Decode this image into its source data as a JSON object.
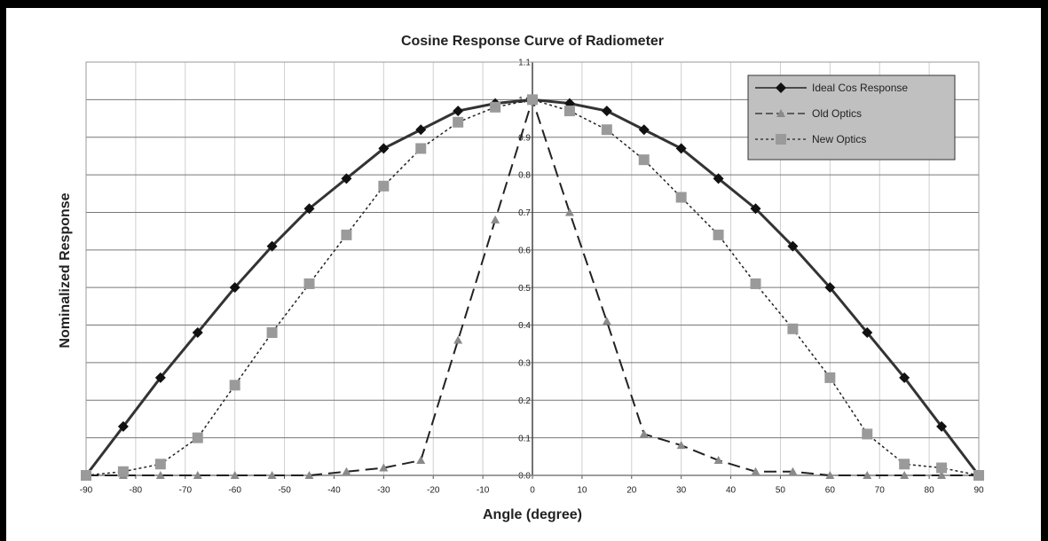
{
  "chart_data": {
    "type": "line",
    "title": "Cosine Response Curve of Radiometer",
    "x_label": "Angle (degree)",
    "y_label": "Nominalized Response",
    "x": [
      -90,
      -82.5,
      -75,
      -67.5,
      -60,
      -52.5,
      -45,
      -37.5,
      -30,
      -22.5,
      -15,
      -7.5,
      0,
      7.5,
      15,
      22.5,
      30,
      37.5,
      45,
      52.5,
      60,
      67.5,
      75,
      82.5,
      90
    ],
    "series": [
      {
        "name": "Ideal Cos Response",
        "color": "#2b2b2b",
        "dash": "solid",
        "marker": "diamond",
        "values": [
          0,
          0.13,
          0.26,
          0.38,
          0.5,
          0.61,
          0.71,
          0.79,
          0.87,
          0.92,
          0.97,
          0.99,
          1,
          0.99,
          0.97,
          0.92,
          0.87,
          0.79,
          0.71,
          0.61,
          0.5,
          0.38,
          0.26,
          0.13,
          0
        ]
      },
      {
        "name": "Old Optics",
        "color": "#8a8a8a",
        "dash": "dashed",
        "marker": "triangle",
        "values": [
          0,
          0,
          0,
          0,
          0,
          0,
          0,
          0.01,
          0.02,
          0.04,
          0.36,
          0.68,
          1,
          0.7,
          0.41,
          0.11,
          0.08,
          0.04,
          0.01,
          0.01,
          0,
          0,
          0,
          0,
          0
        ]
      },
      {
        "name": "New Optics",
        "color": "#9a9a9a",
        "dash": "dotted",
        "marker": "square",
        "values": [
          0,
          0.01,
          0.03,
          0.1,
          0.24,
          0.38,
          0.51,
          0.64,
          0.77,
          0.87,
          0.94,
          0.98,
          1,
          0.97,
          0.92,
          0.84,
          0.74,
          0.64,
          0.51,
          0.39,
          0.26,
          0.11,
          0.03,
          0.02,
          0
        ]
      }
    ],
    "xlim": [
      -90,
      90
    ],
    "xticks": [
      -90,
      -80,
      -70,
      -60,
      -50,
      -40,
      -30,
      -20,
      -10,
      0,
      10,
      20,
      30,
      40,
      50,
      60,
      70,
      80,
      90
    ],
    "ylim": [
      0,
      1.1
    ],
    "yticks": [
      {
        "value": 0,
        "label": "0.0"
      },
      0.1,
      0.2,
      0.3,
      0.4,
      0.5,
      0.6,
      0.7,
      0.8,
      0.9,
      {
        "value": 1,
        "label": "1.0"
      },
      1.1
    ],
    "grid": true,
    "legend": "top-right"
  }
}
